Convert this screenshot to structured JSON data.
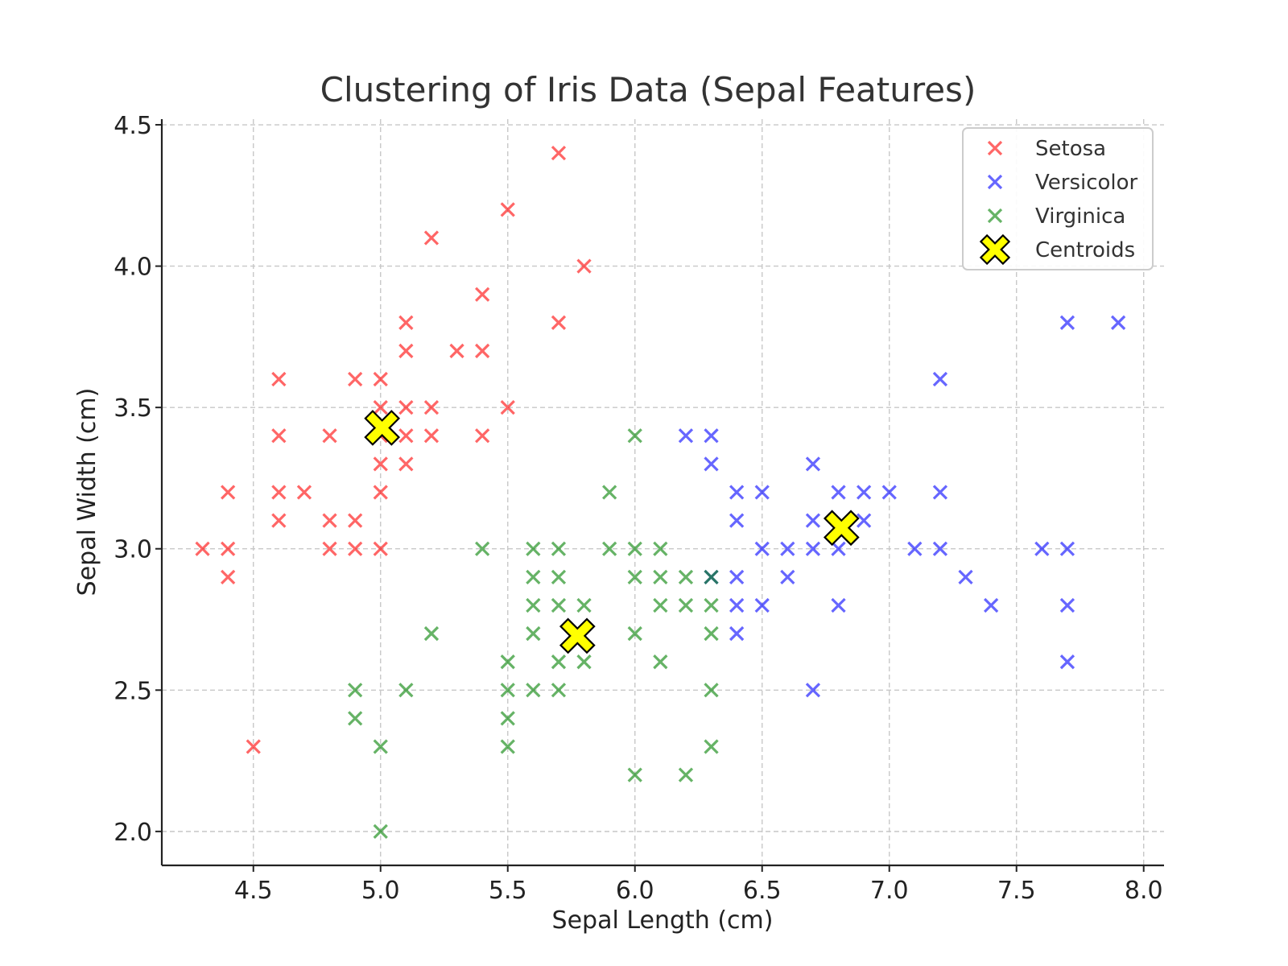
{
  "chart_data": {
    "type": "scatter",
    "title": "Clustering of Iris Data (Sepal Features)",
    "xlabel": "Sepal Length (cm)",
    "ylabel": "Sepal Width (cm)",
    "xlim": [
      4.14,
      8.08
    ],
    "ylim": [
      1.88,
      4.52
    ],
    "xticks": [
      "4.5",
      "5.0",
      "5.5",
      "6.0",
      "6.5",
      "7.0",
      "7.5",
      "8.0"
    ],
    "yticks": [
      "2.0",
      "2.5",
      "3.0",
      "3.5",
      "4.0",
      "4.5"
    ],
    "grid": true,
    "legend_position": "top-right",
    "series": [
      {
        "name": "Setosa",
        "color": "#ff0000",
        "marker": "x",
        "points": [
          [
            5.7,
            4.4
          ],
          [
            5.5,
            4.2
          ],
          [
            5.2,
            4.1
          ],
          [
            5.8,
            4.0
          ],
          [
            5.4,
            3.9
          ],
          [
            5.1,
            3.8
          ],
          [
            5.7,
            3.8
          ],
          [
            5.1,
            3.7
          ],
          [
            5.3,
            3.7
          ],
          [
            5.4,
            3.7
          ],
          [
            4.6,
            3.6
          ],
          [
            4.9,
            3.6
          ],
          [
            5.0,
            3.6
          ],
          [
            5.0,
            3.5
          ],
          [
            5.1,
            3.5
          ],
          [
            5.2,
            3.5
          ],
          [
            5.5,
            3.5
          ],
          [
            4.6,
            3.4
          ],
          [
            4.8,
            3.4
          ],
          [
            5.0,
            3.4
          ],
          [
            5.1,
            3.4
          ],
          [
            5.2,
            3.4
          ],
          [
            5.4,
            3.4
          ],
          [
            5.0,
            3.3
          ],
          [
            5.1,
            3.3
          ],
          [
            4.4,
            3.2
          ],
          [
            4.6,
            3.2
          ],
          [
            4.7,
            3.2
          ],
          [
            5.0,
            3.2
          ],
          [
            4.6,
            3.1
          ],
          [
            4.8,
            3.1
          ],
          [
            4.9,
            3.1
          ],
          [
            4.3,
            3.0
          ],
          [
            4.4,
            3.0
          ],
          [
            4.8,
            3.0
          ],
          [
            4.9,
            3.0
          ],
          [
            5.0,
            3.0
          ],
          [
            4.4,
            2.9
          ],
          [
            4.5,
            2.3
          ]
        ]
      },
      {
        "name": "Versicolor",
        "color": "#0000ff",
        "marker": "x",
        "points": [
          [
            7.7,
            3.8
          ],
          [
            7.9,
            3.8
          ],
          [
            7.2,
            3.6
          ],
          [
            6.2,
            3.4
          ],
          [
            6.3,
            3.4
          ],
          [
            6.3,
            3.3
          ],
          [
            6.7,
            3.3
          ],
          [
            6.4,
            3.2
          ],
          [
            6.5,
            3.2
          ],
          [
            6.8,
            3.2
          ],
          [
            6.9,
            3.2
          ],
          [
            7.0,
            3.2
          ],
          [
            7.2,
            3.2
          ],
          [
            6.4,
            3.1
          ],
          [
            6.7,
            3.1
          ],
          [
            6.9,
            3.1
          ],
          [
            6.5,
            3.0
          ],
          [
            6.6,
            3.0
          ],
          [
            6.7,
            3.0
          ],
          [
            6.8,
            3.0
          ],
          [
            7.1,
            3.0
          ],
          [
            7.2,
            3.0
          ],
          [
            7.6,
            3.0
          ],
          [
            7.7,
            3.0
          ],
          [
            6.3,
            2.9
          ],
          [
            6.4,
            2.9
          ],
          [
            6.6,
            2.9
          ],
          [
            7.3,
            2.9
          ],
          [
            6.4,
            2.8
          ],
          [
            6.5,
            2.8
          ],
          [
            6.8,
            2.8
          ],
          [
            7.4,
            2.8
          ],
          [
            7.7,
            2.8
          ],
          [
            6.4,
            2.7
          ],
          [
            7.7,
            2.6
          ],
          [
            6.7,
            2.5
          ]
        ]
      },
      {
        "name": "Virginica",
        "color": "#008000",
        "marker": "x",
        "points": [
          [
            6.0,
            3.4
          ],
          [
            5.9,
            3.2
          ],
          [
            5.4,
            3.0
          ],
          [
            5.6,
            3.0
          ],
          [
            5.7,
            3.0
          ],
          [
            5.9,
            3.0
          ],
          [
            6.0,
            3.0
          ],
          [
            6.1,
            3.0
          ],
          [
            5.6,
            2.9
          ],
          [
            5.7,
            2.9
          ],
          [
            6.0,
            2.9
          ],
          [
            6.1,
            2.9
          ],
          [
            6.2,
            2.9
          ],
          [
            6.3,
            2.9
          ],
          [
            5.6,
            2.8
          ],
          [
            5.7,
            2.8
          ],
          [
            5.8,
            2.8
          ],
          [
            6.1,
            2.8
          ],
          [
            6.2,
            2.8
          ],
          [
            6.3,
            2.8
          ],
          [
            5.2,
            2.7
          ],
          [
            5.6,
            2.7
          ],
          [
            6.0,
            2.7
          ],
          [
            6.3,
            2.7
          ],
          [
            5.5,
            2.6
          ],
          [
            5.7,
            2.6
          ],
          [
            5.8,
            2.6
          ],
          [
            6.1,
            2.6
          ],
          [
            4.9,
            2.5
          ],
          [
            5.1,
            2.5
          ],
          [
            5.5,
            2.5
          ],
          [
            5.6,
            2.5
          ],
          [
            5.7,
            2.5
          ],
          [
            6.3,
            2.5
          ],
          [
            4.9,
            2.4
          ],
          [
            5.5,
            2.4
          ],
          [
            5.0,
            2.3
          ],
          [
            5.5,
            2.3
          ],
          [
            6.3,
            2.3
          ],
          [
            6.0,
            2.2
          ],
          [
            6.2,
            2.2
          ],
          [
            5.0,
            2.0
          ]
        ]
      }
    ],
    "centroids": {
      "name": "Centroids",
      "color": "#ffff00",
      "edge_color": "#000000",
      "marker": "X",
      "points": [
        [
          5.006,
          3.428
        ],
        [
          5.774,
          2.692
        ],
        [
          6.812,
          3.074
        ]
      ]
    }
  }
}
